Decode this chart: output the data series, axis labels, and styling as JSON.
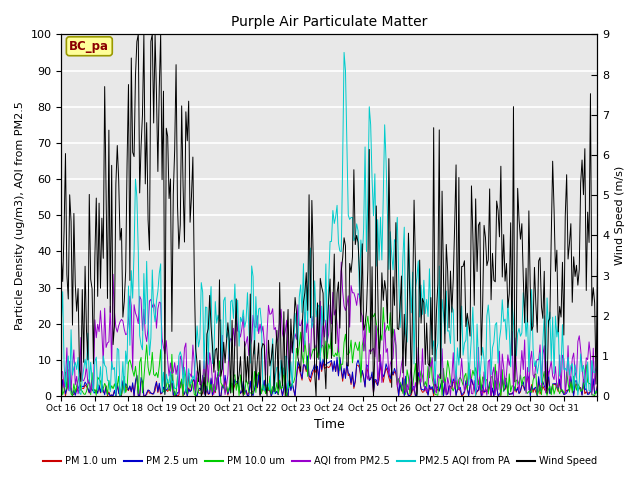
{
  "title": "Purple Air Particulate Matter",
  "xlabel": "Time",
  "ylabel_left": "Particle Density (ug/m3), AQI from PM2.5",
  "ylabel_right": "Wind Speed (m/s)",
  "ylim_left": [
    0,
    100
  ],
  "ylim_right": [
    0.0,
    9.0
  ],
  "yticks_left": [
    0,
    10,
    20,
    30,
    40,
    50,
    60,
    70,
    80,
    90,
    100
  ],
  "yticks_right": [
    0.0,
    1.0,
    2.0,
    3.0,
    4.0,
    5.0,
    6.0,
    7.0,
    8.0,
    9.0
  ],
  "xtick_labels": [
    "Oct 16",
    "Oct 17",
    "Oct 18",
    "Oct 19",
    "Oct 20",
    "Oct 21",
    "Oct 22",
    "Oct 23",
    "Oct 24",
    "Oct 25",
    "Oct 26",
    "Oct 27",
    "Oct 28",
    "Oct 29",
    "Oct 30",
    "Oct 31"
  ],
  "station_label": "BC_pa",
  "colors": {
    "pm1": "#cc0000",
    "pm25": "#0000cc",
    "pm10": "#00cc00",
    "aqi_pm25": "#9900cc",
    "aqi_pa": "#00cccc",
    "wind": "#000000"
  },
  "legend_labels": [
    "PM 1.0 um",
    "PM 2.5 um",
    "PM 10.0 um",
    "AQI from PM2.5",
    "PM2.5 AQI from PA",
    "Wind Speed"
  ],
  "bg_color": "#ffffff",
  "plot_bg_color": "#e8e8e8",
  "grid_color": "#ffffff",
  "figsize": [
    6.4,
    4.8
  ],
  "dpi": 100
}
